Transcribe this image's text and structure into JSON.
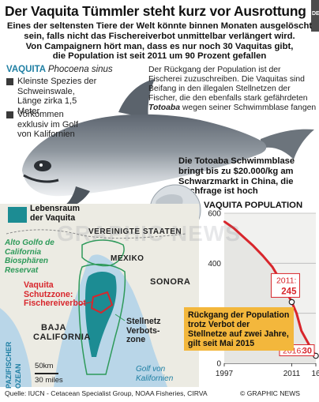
{
  "title": "Der Vaquita Tümmler steht kurz vor Ausrottung",
  "subtitle": {
    "line1": "Eines der seltensten Tiere der Welt könnte binnen Monaten ausgelöscht",
    "line2": "sein, falls nicht das Fischereiverbot unmittelbar verlängert wird.",
    "line3": "Von Campaignern hört man, dass es nur noch 30 Vaquitas gibt,",
    "line4": "die Population ist seit 2011 um 90 Prozent gefallen"
  },
  "species": {
    "name": "VAQUITA",
    "latin": "Phocoena sinus",
    "facts": [
      "Kleinste Spezies der Schweinswale, Länge zirka 1,5 Meter",
      "Vorkommen exklusiv im Golf von Kalifornien"
    ]
  },
  "caption_top": {
    "line1": "Der Rückgang der Population ist der",
    "line2": "Fischerei zuzuschreiben. Die Vaquitas sind",
    "line3": "Beifang in den illegalen Stellnetzen der",
    "line4": "Fischer, die den ebenfalls stark gefährdeten",
    "totoaba": "Totoaba",
    "line5_rest": "wegen seiner Schwimmblase fangen"
  },
  "caption_bladder": {
    "line1": "Die Totoaba Schwimmblase",
    "line2": "bringt bis zu $20.000/kg am",
    "line3": "Schwarzmarkt in China, die",
    "line4": "Nachfrage ist hoch"
  },
  "map": {
    "legend": "Lebensraum der Vaquita",
    "reserve_l1": "Alto Golfo de",
    "reserve_l2": "California",
    "reserve_l3": "Biosphären",
    "reserve_l4": "Reservat",
    "usa_l1": "VEREINIGTE STAATEN",
    "mexico": "MEXIKO",
    "sonora": "SONORA",
    "zone_l1": "Vaquita",
    "zone_l2": "Schutzzone:",
    "zone_l3": "Fischereiverbot",
    "netban_l1": "Stellnetz",
    "netban_l2": "Verbots-",
    "netban_l3": "zone",
    "baja_l1": "BAJA",
    "baja_l2": "CALIFORNIA",
    "gulf_l1": "Golf von",
    "gulf_l2": "Kalifornien",
    "pacific_l1": "PAZIFISCHER",
    "pacific_l2": "OZEAN",
    "scale_km": "50km",
    "scale_mi": "30 miles"
  },
  "chart_data": {
    "type": "line",
    "title": "VAQUITA POPULATION",
    "x": [
      1997,
      1999,
      2001,
      2003,
      2005,
      2007,
      2009,
      2011,
      2012,
      2013,
      2014,
      2015,
      2016
    ],
    "values": [
      567,
      540,
      505,
      470,
      430,
      385,
      320,
      245,
      200,
      130,
      95,
      60,
      30
    ],
    "yticks": [
      0,
      200,
      400,
      600
    ],
    "ylim": [
      0,
      600
    ],
    "xticks": [
      "1997",
      "2011",
      "16"
    ],
    "xtick_values": [
      1997,
      2011,
      2016
    ],
    "annotations": [
      {
        "label": "2011:",
        "value_label": "245",
        "x": 2011,
        "y": 245
      },
      {
        "label": "2016:",
        "value_label": "30",
        "x": 2016,
        "y": 30
      }
    ],
    "note": "Rückgang der Population trotz Verbot der Stellnetze auf zwei Jahre, gilt seit Mai 2015",
    "line_color": "#d8262c"
  },
  "colors": {
    "accent_blue": "#1f7fa3",
    "habitat_teal": "#1c8c93",
    "zone_red": "#d8262c",
    "netban_green": "#2e9a5a",
    "note_orange": "#f3b73c"
  },
  "source": "Quelle: IUCN - Cetacean Specialist Group, NOAA Fisheries, CIRVA",
  "credit": "© GRAPHIC NEWS",
  "watermark": "GRAPHIC NEWS",
  "corner_tag": "DE"
}
